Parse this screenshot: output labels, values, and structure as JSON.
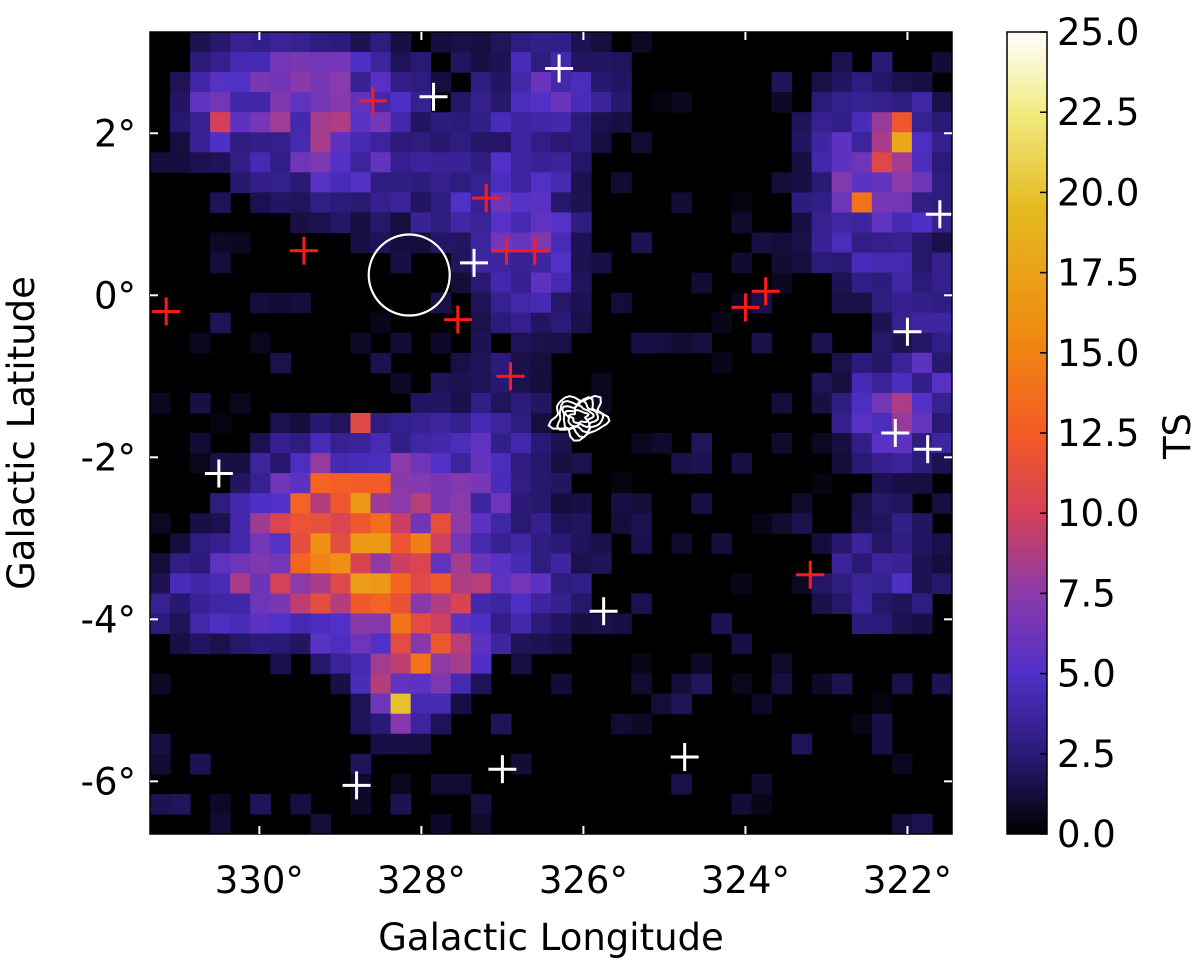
{
  "chart_data": {
    "type": "heatmap",
    "xlabel": "Galactic Longitude",
    "ylabel": "Galactic Latitude",
    "xlim": [
      331.35,
      321.45
    ],
    "ylim": [
      -6.65,
      3.25
    ],
    "x_unit": "°",
    "y_unit": "°",
    "x_ticks": [
      330,
      328,
      326,
      324,
      322
    ],
    "x_tick_labels": [
      "330°",
      "328°",
      "326°",
      "324°",
      "322°"
    ],
    "y_ticks": [
      2,
      0,
      -2,
      -4,
      -6
    ],
    "y_tick_labels": [
      "2°",
      "0°",
      "-2°",
      "-4°",
      "-6°"
    ],
    "colorbar": {
      "label": "TS",
      "min": 0.0,
      "max": 25.0,
      "ticks": [
        0.0,
        2.5,
        5.0,
        7.5,
        10.0,
        12.5,
        15.0,
        17.5,
        20.0,
        22.5,
        25.0
      ],
      "tick_labels": [
        "0.0",
        "2.5",
        "5.0",
        "7.5",
        "10.0",
        "12.5",
        "15.0",
        "17.5",
        "20.0",
        "22.5",
        "25.0"
      ],
      "colormap": [
        "#000000",
        "#2b1a78",
        "#5030c8",
        "#8a3aaa",
        "#d4405a",
        "#f45b25",
        "#f08a10",
        "#e4ba20",
        "#f2ea80",
        "#ffffff"
      ]
    },
    "grid": {
      "pixel_size_deg": 0.25,
      "nx": 40,
      "ny": 40,
      "x_start": 331.35,
      "y_start": 3.25
    },
    "blobs": [
      {
        "l": 329.5,
        "b": 2.4,
        "sl": 0.9,
        "sb": 0.7,
        "ts": 6
      },
      {
        "l": 330.5,
        "b": 2.2,
        "sl": 0.3,
        "sb": 0.3,
        "ts": 4
      },
      {
        "l": 328.8,
        "b": 1.7,
        "sl": 0.6,
        "sb": 0.8,
        "ts": 3
      },
      {
        "l": 326.4,
        "b": 2.5,
        "sl": 0.7,
        "sb": 0.6,
        "ts": 4.5
      },
      {
        "l": 326.6,
        "b": 0.6,
        "sl": 0.5,
        "sb": 0.8,
        "ts": 5.5
      },
      {
        "l": 327.5,
        "b": 1.1,
        "sl": 0.5,
        "sb": 0.4,
        "ts": 3
      },
      {
        "l": 329.0,
        "b": -3.0,
        "sl": 0.8,
        "sb": 0.7,
        "ts": 11.5
      },
      {
        "l": 327.8,
        "b": -3.2,
        "sl": 1.1,
        "sb": 0.8,
        "ts": 5.5
      },
      {
        "l": 330.5,
        "b": -3.8,
        "sl": 0.8,
        "sb": 0.4,
        "ts": 4.5
      },
      {
        "l": 328.3,
        "b": -4.2,
        "sl": 0.6,
        "sb": 0.5,
        "ts": 5
      },
      {
        "l": 327.7,
        "b": -4.4,
        "sl": 0.3,
        "sb": 0.3,
        "ts": 8
      },
      {
        "l": 328.2,
        "b": -5.1,
        "sl": 0.3,
        "sb": 0.3,
        "ts": 8
      },
      {
        "l": 327.2,
        "b": -1.8,
        "sl": 0.6,
        "sb": 0.7,
        "ts": 3
      },
      {
        "l": 326.6,
        "b": -3.8,
        "sl": 0.6,
        "sb": 0.4,
        "ts": 3
      },
      {
        "l": 322.3,
        "b": 1.4,
        "sl": 0.6,
        "sb": 0.9,
        "ts": 7
      },
      {
        "l": 322.0,
        "b": 1.8,
        "sl": 0.2,
        "sb": 0.3,
        "ts": 9
      },
      {
        "l": 322.0,
        "b": -1.5,
        "sl": 0.5,
        "sb": 0.5,
        "ts": 7
      },
      {
        "l": 322.2,
        "b": -3.5,
        "sl": 0.6,
        "sb": 0.6,
        "ts": 4
      },
      {
        "l": 321.6,
        "b": -0.3,
        "sl": 0.3,
        "sb": 0.6,
        "ts": 2.5
      }
    ],
    "hot_pixels": [
      {
        "l": 328.95,
        "b": -3.35,
        "ts": 16
      },
      {
        "l": 329.45,
        "b": -2.7,
        "ts": 13
      },
      {
        "l": 329.2,
        "b": -2.4,
        "ts": 13
      },
      {
        "l": 328.45,
        "b": -2.4,
        "ts": 12.5
      },
      {
        "l": 328.7,
        "b": -2.9,
        "ts": 12
      },
      {
        "l": 328.2,
        "b": -5.1,
        "ts": 20
      },
      {
        "l": 327.95,
        "b": -4.6,
        "ts": 14
      },
      {
        "l": 327.7,
        "b": -4.35,
        "ts": 12
      },
      {
        "l": 328.7,
        "b": -1.6,
        "ts": 11
      },
      {
        "l": 330.45,
        "b": 2.2,
        "ts": 10
      },
      {
        "l": 322.45,
        "b": 1.2,
        "ts": 14
      },
      {
        "l": 321.95,
        "b": 1.95,
        "ts": 18
      },
      {
        "l": 321.95,
        "b": 2.2,
        "ts": 12
      },
      {
        "l": 322.0,
        "b": -1.5,
        "ts": 10
      },
      {
        "l": 321.7,
        "b": -1.5,
        "ts": 9
      }
    ],
    "red_crosses": [
      {
        "l": 331.15,
        "b": -0.2
      },
      {
        "l": 329.45,
        "b": 0.55
      },
      {
        "l": 328.6,
        "b": 2.4
      },
      {
        "l": 327.55,
        "b": -0.3
      },
      {
        "l": 327.2,
        "b": 1.2
      },
      {
        "l": 326.95,
        "b": 0.55
      },
      {
        "l": 326.6,
        "b": 0.55
      },
      {
        "l": 326.9,
        "b": -1.0
      },
      {
        "l": 324.0,
        "b": -0.15
      },
      {
        "l": 323.75,
        "b": 0.05
      },
      {
        "l": 323.2,
        "b": -3.45
      }
    ],
    "white_crosses": [
      {
        "l": 330.5,
        "b": -2.2
      },
      {
        "l": 327.85,
        "b": 2.45
      },
      {
        "l": 327.35,
        "b": 0.4
      },
      {
        "l": 326.3,
        "b": 2.8
      },
      {
        "l": 325.75,
        "b": -3.9
      },
      {
        "l": 327.0,
        "b": -5.85
      },
      {
        "l": 328.8,
        "b": -6.05
      },
      {
        "l": 324.75,
        "b": -5.7
      },
      {
        "l": 321.6,
        "b": 1.0
      },
      {
        "l": 322.0,
        "b": -0.45
      },
      {
        "l": 322.15,
        "b": -1.7
      },
      {
        "l": 321.75,
        "b": -1.9
      }
    ],
    "circle": {
      "l": 328.15,
      "b": 0.25,
      "radius_deg": 0.5
    },
    "contour_region": {
      "l": 326.05,
      "b": -1.5
    }
  }
}
